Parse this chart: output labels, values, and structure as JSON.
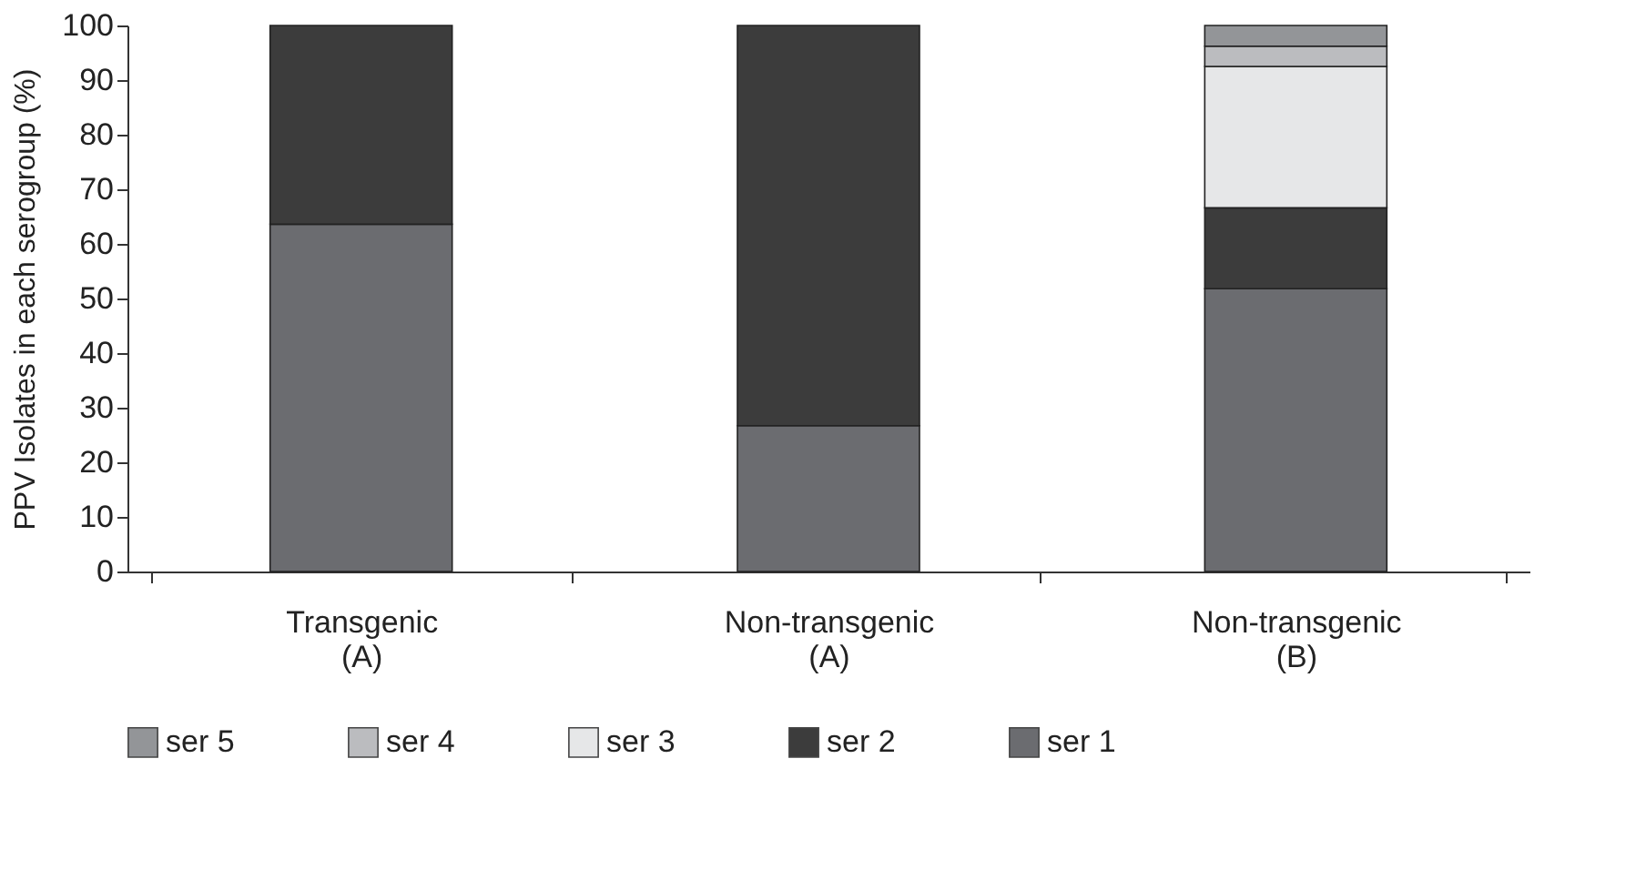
{
  "chart_data": {
    "type": "bar",
    "stacked": true,
    "ylabel": "PPV Isolates in each serogroup (%)",
    "categories": [
      "Transgenic\n(A)",
      "Non-transgenic\n(A)",
      "Non-transgenic\n(B)"
    ],
    "series": [
      {
        "name": "ser 1",
        "color": "#6b6c70",
        "values": [
          63.6,
          26.7,
          51.8
        ]
      },
      {
        "name": "ser 2",
        "color": "#3c3c3c",
        "values": [
          36.4,
          73.3,
          14.8
        ]
      },
      {
        "name": "ser 3",
        "color": "#e6e7e8",
        "values": [
          null,
          null,
          25.9
        ]
      },
      {
        "name": "ser 4",
        "color": "#bbbcbf",
        "values": [
          null,
          null,
          3.7
        ]
      },
      {
        "name": "ser 5",
        "color": "#939598",
        "values": [
          null,
          null,
          3.8
        ]
      }
    ],
    "ylim": [
      0,
      100
    ],
    "yticks": [
      0,
      10,
      20,
      30,
      40,
      50,
      60,
      70,
      80,
      90,
      100
    ],
    "grid": false,
    "legend": "bottom"
  }
}
